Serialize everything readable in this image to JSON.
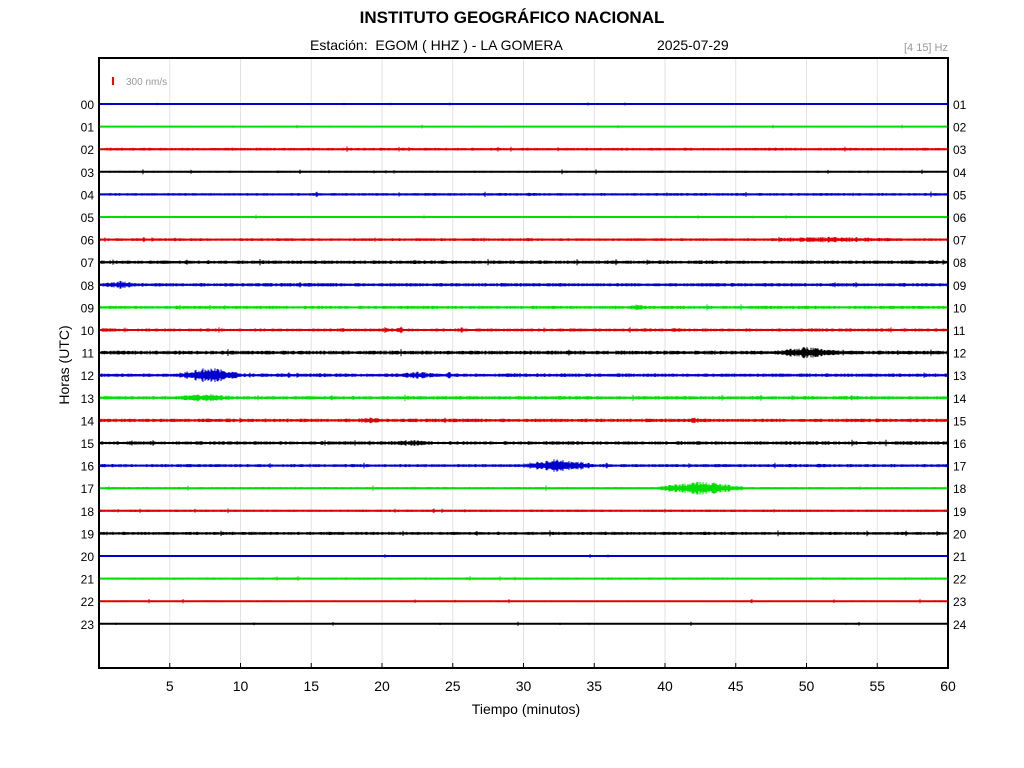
{
  "header": {
    "title": "INSTITUTO GEOGRÁFICO NACIONAL",
    "station": "Estación:  EGOM ( HHZ ) - LA GOMERA",
    "date": "2025-07-29",
    "filter": "[4 15] Hz"
  },
  "chart_data": {
    "type": "line",
    "title": "INSTITUTO GEOGRÁFICO NACIONAL",
    "xlabel": "Tiempo (minutos)",
    "ylabel": "Horas (UTC)",
    "xlim": [
      0,
      60
    ],
    "xticks": [
      5,
      10,
      15,
      20,
      25,
      30,
      35,
      40,
      45,
      50,
      55,
      60
    ],
    "grid": true,
    "scale_label": "300 nm/s",
    "scale_color": "#ff0000",
    "series_colors": [
      "#0000cc",
      "#00dd00",
      "#dd0000",
      "#000000"
    ],
    "left_labels": [
      "00",
      "01",
      "02",
      "03",
      "04",
      "05",
      "06",
      "07",
      "08",
      "09",
      "10",
      "11",
      "12",
      "13",
      "14",
      "15",
      "16",
      "17",
      "18",
      "19",
      "20",
      "21",
      "22",
      "23"
    ],
    "right_labels": [
      "01",
      "02",
      "03",
      "04",
      "05",
      "06",
      "07",
      "08",
      "09",
      "10",
      "11",
      "12",
      "13",
      "14",
      "15",
      "16",
      "17",
      "18",
      "19",
      "20",
      "21",
      "22",
      "23",
      "24"
    ],
    "noise": [
      0.5,
      0.8,
      1.4,
      1.0,
      1.4,
      0.6,
      1.4,
      1.8,
      1.8,
      1.6,
      1.6,
      2.0,
      1.8,
      1.8,
      1.8,
      1.8,
      1.6,
      1.2,
      1.2,
      1.6,
      0.8,
      1.2,
      0.8,
      0.6
    ],
    "events": [
      {
        "hour": 6,
        "start": 29,
        "end": 32,
        "amp": 2
      },
      {
        "hour": 6,
        "start": 45.5,
        "end": 58,
        "amp": 3
      },
      {
        "hour": 7,
        "start": 17,
        "end": 19,
        "amp": 2
      },
      {
        "hour": 8,
        "start": 0,
        "end": 3,
        "amp": 4
      },
      {
        "hour": 9,
        "start": 37,
        "end": 39,
        "amp": 3
      },
      {
        "hour": 10,
        "start": 0,
        "end": 1.2,
        "amp": 3
      },
      {
        "hour": 10,
        "start": 17,
        "end": 17.5,
        "amp": 3
      },
      {
        "hour": 10,
        "start": 19.5,
        "end": 21,
        "amp": 3
      },
      {
        "hour": 10,
        "start": 21,
        "end": 21.5,
        "amp": 5
      },
      {
        "hour": 11,
        "start": 19,
        "end": 24,
        "amp": 2
      },
      {
        "hour": 11,
        "start": 47.5,
        "end": 52.5,
        "amp": 6
      },
      {
        "hour": 12,
        "start": 5.5,
        "end": 10,
        "amp": 8
      },
      {
        "hour": 12,
        "start": 21,
        "end": 24,
        "amp": 4
      },
      {
        "hour": 12,
        "start": 24.5,
        "end": 25,
        "amp": 4
      },
      {
        "hour": 12,
        "start": 25.5,
        "end": 33,
        "amp": 2
      },
      {
        "hour": 13,
        "start": 5,
        "end": 10,
        "amp": 4
      },
      {
        "hour": 13,
        "start": 53,
        "end": 53.5,
        "amp": 3
      },
      {
        "hour": 14,
        "start": 17,
        "end": 21,
        "amp": 3
      },
      {
        "hour": 14,
        "start": 41,
        "end": 43,
        "amp": 3
      },
      {
        "hour": 15,
        "start": 4,
        "end": 15,
        "amp": 2
      },
      {
        "hour": 15,
        "start": 19,
        "end": 25,
        "amp": 3
      },
      {
        "hour": 16,
        "start": 30,
        "end": 35,
        "amp": 7
      },
      {
        "hour": 17,
        "start": 39.5,
        "end": 45.5,
        "amp": 7
      }
    ]
  }
}
